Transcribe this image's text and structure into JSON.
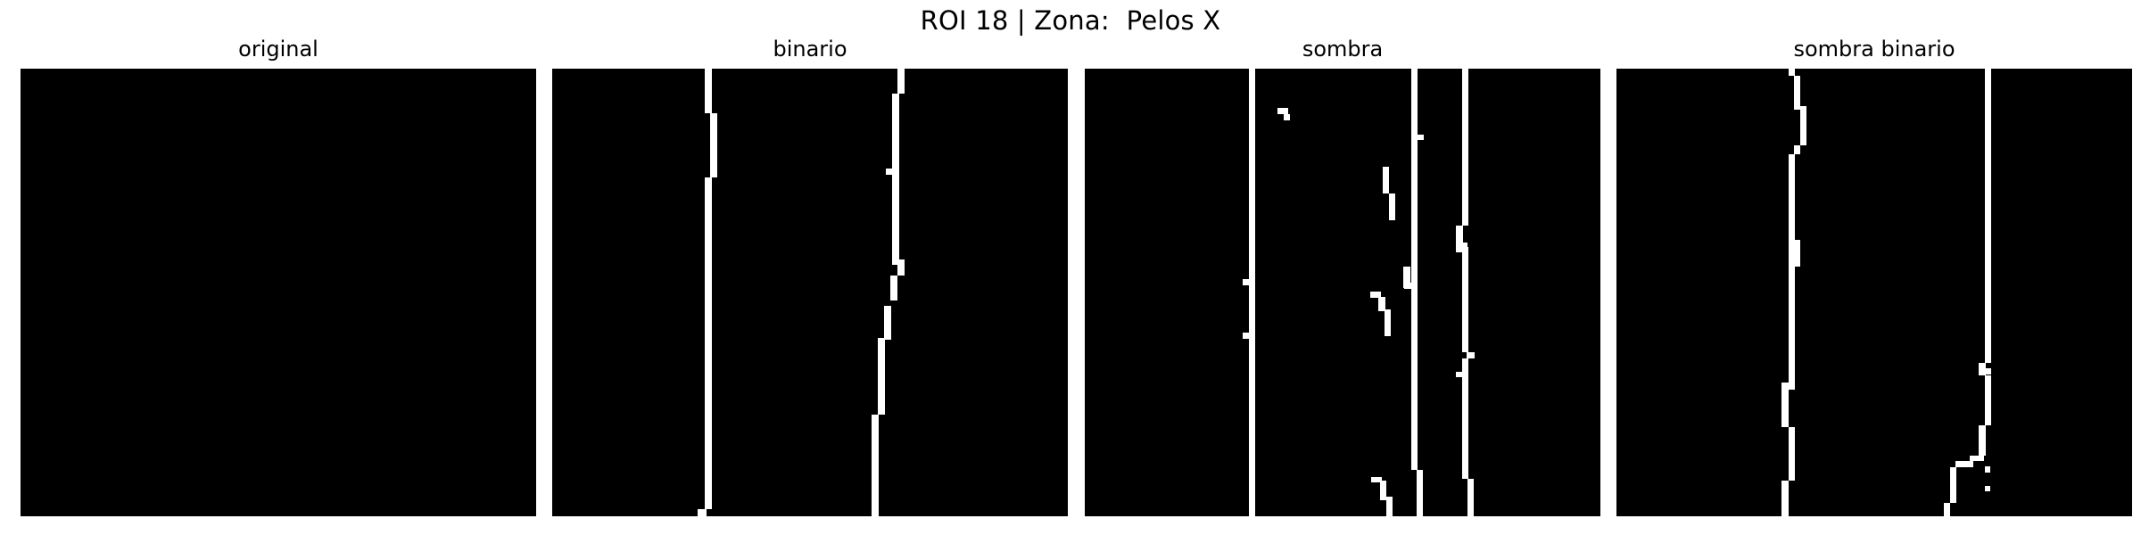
{
  "figure": {
    "suptitle": "ROI 18 | Zona:  Pelos X",
    "panels": [
      {
        "title": "original"
      },
      {
        "title": "binario"
      },
      {
        "title": "sombra"
      },
      {
        "title": "sombra binario"
      }
    ]
  },
  "colors": {
    "background": "#000000",
    "foreground": "#ffffff",
    "page": "#ffffff"
  }
}
